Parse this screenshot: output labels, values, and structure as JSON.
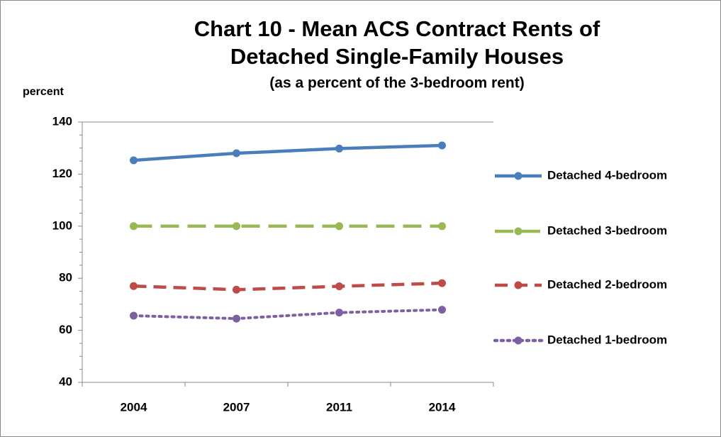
{
  "chart_data": {
    "type": "line",
    "title": [
      "Chart 10 - Mean ACS Contract Rents of",
      "Detached Single-Family Houses"
    ],
    "subtitle": "(as a percent of the 3-bedroom rent)",
    "y_label": "percent",
    "categories": [
      "2004",
      "2007",
      "2011",
      "2014"
    ],
    "series": [
      {
        "name": "Detached 4-bedroom",
        "color": "#4a7ebb",
        "dash": "solid",
        "values": [
          125.3,
          128,
          129.8,
          131
        ]
      },
      {
        "name": "Detached 3-bedroom",
        "color": "#98b954",
        "dash": "longdash",
        "values": [
          100,
          100,
          100,
          100
        ]
      },
      {
        "name": "Detached 2-bedroom",
        "color": "#be4b48",
        "dash": "dash",
        "values": [
          77,
          75.6,
          76.9,
          78.1
        ]
      },
      {
        "name": "Detached 1-bedroom",
        "color": "#7d60a0",
        "dash": "dot",
        "values": [
          65.6,
          64.5,
          66.8,
          67.9
        ]
      }
    ],
    "ylim": [
      40,
      140
    ],
    "yticks": [
      40,
      60,
      80,
      100,
      120,
      140
    ],
    "grid": false,
    "legend": "right"
  }
}
